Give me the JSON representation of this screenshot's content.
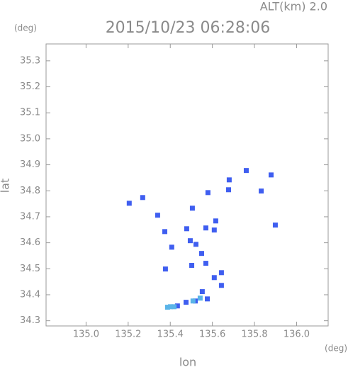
{
  "chart_data": {
    "type": "scatter",
    "title": "2015/10/23 06:28:06",
    "subtitle": "ALT(km) 2.0",
    "y_unit": "(deg)",
    "x_unit": "(deg)",
    "xlabel": "lon",
    "ylabel": "lat",
    "xlim": [
      134.81,
      136.15
    ],
    "ylim": [
      34.28,
      35.365
    ],
    "xticks": [
      {
        "value": 135,
        "label": "135.0"
      },
      135.2,
      135.4,
      135.6,
      135.8,
      {
        "value": 136,
        "label": "136.0"
      }
    ],
    "yticks": [
      34.3,
      34.4,
      34.5,
      34.6,
      34.7,
      34.8,
      34.9,
      {
        "value": 35,
        "label": "35.0"
      },
      35.1,
      35.2,
      35.3
    ],
    "x": [
      135.761,
      135.879,
      135.68,
      135.677,
      135.832,
      135.579,
      135.269,
      135.205,
      135.505,
      135.34,
      135.616,
      135.899,
      135.374,
      135.478,
      135.569,
      135.495,
      135.609,
      135.407,
      135.522,
      135.549,
      135.502,
      135.569,
      135.377,
      135.643,
      135.609,
      135.643,
      135.552,
      135.576,
      135.519,
      135.475,
      135.434,
      135.401,
      135.387,
      135.418,
      135.508,
      135.542
    ],
    "values": [
      34.878,
      34.861,
      34.842,
      34.804,
      34.799,
      34.793,
      34.774,
      34.752,
      34.733,
      34.706,
      34.684,
      34.668,
      34.643,
      34.654,
      34.657,
      34.608,
      34.649,
      34.583,
      34.594,
      34.559,
      34.513,
      34.521,
      34.499,
      34.485,
      34.466,
      34.436,
      34.412,
      34.384,
      34.376,
      34.371,
      34.357,
      34.354,
      34.352,
      34.354,
      34.376,
      34.387
    ],
    "colors": [
      "#3f5ef0",
      "#5ab4e8"
    ],
    "point_color_index": [
      0,
      0,
      0,
      0,
      0,
      0,
      0,
      0,
      0,
      0,
      0,
      0,
      0,
      0,
      0,
      0,
      0,
      0,
      0,
      0,
      0,
      0,
      0,
      0,
      0,
      0,
      0,
      0,
      0,
      0,
      0,
      1,
      1,
      1,
      1,
      1
    ]
  }
}
